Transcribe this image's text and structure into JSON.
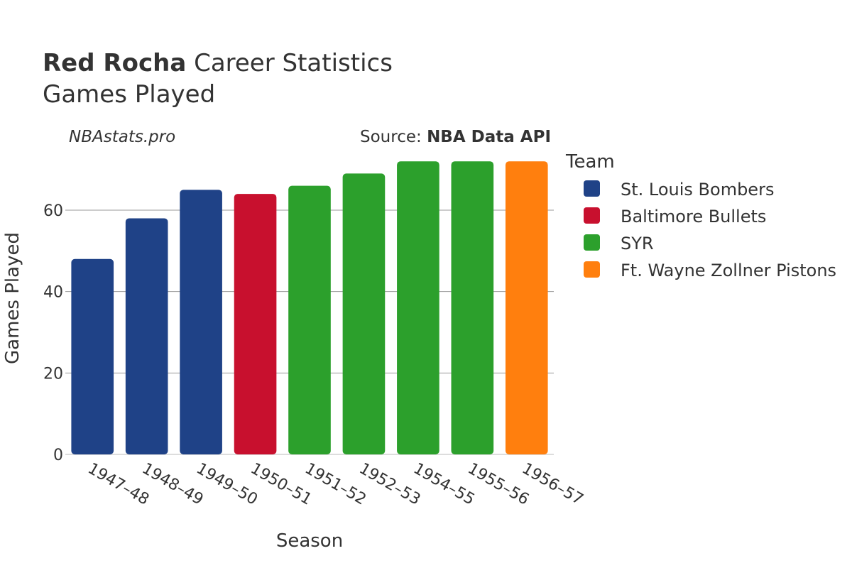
{
  "header": {
    "player_name": "Red Rocha",
    "title_rest": "Career Statistics",
    "subtitle": "Games Played",
    "watermark": "NBAstats.pro",
    "source_prefix": "Source: ",
    "source_name": "NBA Data API"
  },
  "chart_data": {
    "type": "bar",
    "title": "Red Rocha Career Statistics",
    "subtitle": "Games Played",
    "xlabel": "Season",
    "ylabel": "Games Played",
    "ylim": [
      0,
      75
    ],
    "yticks": [
      0,
      20,
      40,
      60
    ],
    "grid": true,
    "legend_title": "Team",
    "legend_position": "right",
    "teams": [
      {
        "name": "St. Louis Bombers",
        "color": "#1f4287"
      },
      {
        "name": "Baltimore Bullets",
        "color": "#c8102e"
      },
      {
        "name": "SYR",
        "color": "#2ca02c"
      },
      {
        "name": "Ft. Wayne Zollner Pistons",
        "color": "#ff7f0e"
      }
    ],
    "categories": [
      "1947–48",
      "1948–49",
      "1949–50",
      "1950–51",
      "1951–52",
      "1952–53",
      "1954–55",
      "1955–56",
      "1956–57"
    ],
    "values": [
      48,
      58,
      65,
      64,
      66,
      69,
      72,
      72,
      72
    ],
    "bar_team": [
      0,
      0,
      0,
      1,
      2,
      2,
      2,
      2,
      3
    ]
  }
}
